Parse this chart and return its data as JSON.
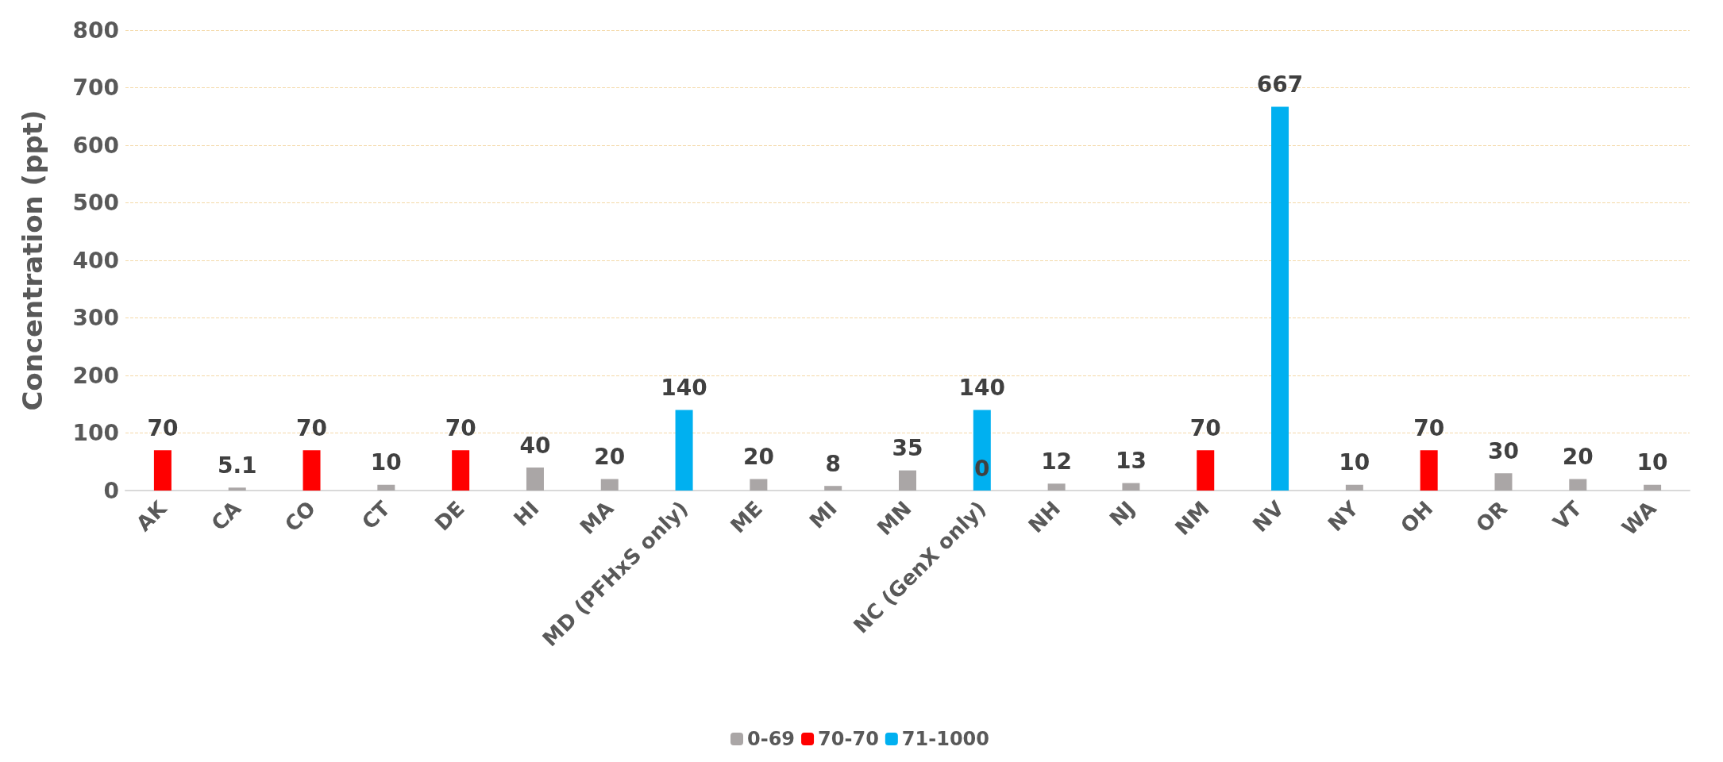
{
  "chart_data": {
    "type": "bar",
    "ylabel": "Concentration (ppt)",
    "categories": [
      "AK",
      "CA",
      "CO",
      "CT",
      "DE",
      "HI",
      "MA",
      "MD (PFHxS only)",
      "ME",
      "MI",
      "MN",
      "NC (GenX only)",
      "NH",
      "NJ",
      "NM",
      "NV",
      "NY",
      "OH",
      "OR",
      "VT",
      "WA"
    ],
    "series": [
      {
        "name": "0-69",
        "color": "#aaa6a6",
        "values": [
          null,
          5.1,
          null,
          10,
          null,
          40,
          20,
          null,
          20,
          8,
          35,
          0,
          12,
          13,
          null,
          null,
          10,
          null,
          30,
          20,
          10
        ]
      },
      {
        "name": "70-70",
        "color": "#ff0000",
        "values": [
          70,
          null,
          70,
          null,
          70,
          null,
          null,
          null,
          null,
          null,
          null,
          null,
          null,
          null,
          70,
          null,
          null,
          70,
          null,
          null,
          null
        ]
      },
      {
        "name": "71-1000",
        "color": "#00b0f0",
        "values": [
          null,
          null,
          null,
          null,
          null,
          null,
          null,
          140,
          null,
          null,
          null,
          140,
          null,
          null,
          null,
          667,
          null,
          null,
          null,
          null,
          null
        ]
      }
    ],
    "stacked": true,
    "ylim": [
      0,
      800
    ],
    "yticks": [
      0,
      100,
      200,
      300,
      400,
      500,
      600,
      700,
      800
    ],
    "grid": "y",
    "legend": "bottom",
    "data_labels": true
  }
}
